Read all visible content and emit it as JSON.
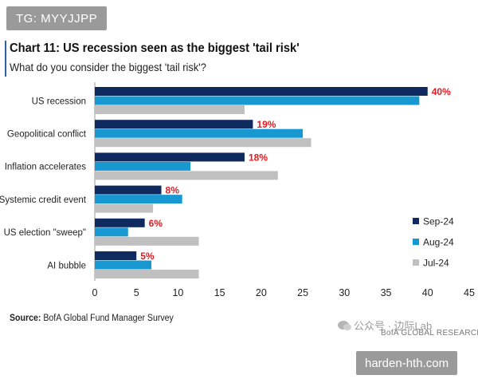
{
  "watermark_top": "TG: MYYJJPP",
  "watermark_bottom": "harden-hth.com",
  "wechat_text": "公众号 · 边际Lab",
  "bofa_credit": "BofA GLOBAL RESEARCH",
  "source_label": "Source:",
  "source_text": "BofA Global Fund Manager Survey",
  "colors": {
    "sep24": "#0f2a5e",
    "aug24": "#1798d1",
    "jul24": "#c0c0c0",
    "label_red": "#e11b22",
    "accent": "#2c5fa8"
  },
  "chart_data": {
    "type": "bar",
    "orientation": "horizontal",
    "title": "Chart 11: US recession seen as the biggest 'tail risk'",
    "subtitle": "What do you consider the biggest 'tail risk'?",
    "categories": [
      "US recession",
      "Geopolitical conflict",
      "Inflation accelerates",
      "Systemic credit event",
      "US election \"sweep\"",
      "AI bubble"
    ],
    "series": [
      {
        "name": "Sep-24",
        "values": [
          40,
          19,
          18,
          8,
          6,
          5
        ]
      },
      {
        "name": "Aug-24",
        "values": [
          39,
          25,
          11.5,
          10.5,
          4,
          6.8
        ]
      },
      {
        "name": "Jul-24",
        "values": [
          18,
          26,
          22,
          7,
          12.5,
          12.5
        ]
      }
    ],
    "data_labels": [
      "40%",
      "19%",
      "18%",
      "8%",
      "6%",
      "5%"
    ],
    "xlim": [
      0,
      45
    ],
    "xticks": [
      "0",
      "5",
      "10",
      "15",
      "20",
      "25",
      "30",
      "35",
      "40",
      "45"
    ],
    "legend": [
      "Sep-24",
      "Aug-24",
      "Jul-24"
    ],
    "legend_position": "right"
  }
}
